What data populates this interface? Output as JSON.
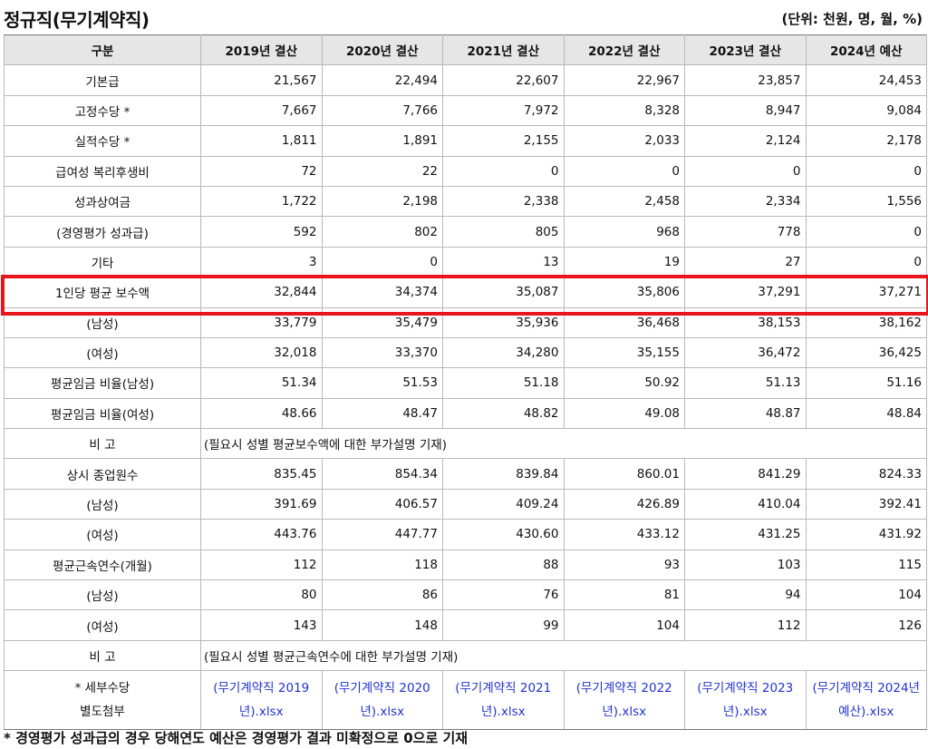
{
  "title": "정규직(무기계약직)",
  "unit": "(단위: 천원, 명, 월, %)",
  "table": {
    "headers": [
      "구분",
      "2019년 결산",
      "2020년 결산",
      "2021년 결산",
      "2022년 결산",
      "2023년 결산",
      "2024년 예산"
    ],
    "rows": [
      {
        "label": "기본급",
        "values": [
          "21,567",
          "22,494",
          "22,607",
          "22,967",
          "23,857",
          "24,453"
        ]
      },
      {
        "label": "고정수당 *",
        "values": [
          "7,667",
          "7,766",
          "7,972",
          "8,328",
          "8,947",
          "9,084"
        ]
      },
      {
        "label": "실적수당 *",
        "values": [
          "1,811",
          "1,891",
          "2,155",
          "2,033",
          "2,124",
          "2,178"
        ]
      },
      {
        "label": "급여성 복리후생비",
        "values": [
          "72",
          "22",
          "0",
          "0",
          "0",
          "0"
        ]
      },
      {
        "label": "성과상여금",
        "values": [
          "1,722",
          "2,198",
          "2,338",
          "2,458",
          "2,334",
          "1,556"
        ]
      },
      {
        "label": "(경영평가 성과급)",
        "values": [
          "592",
          "802",
          "805",
          "968",
          "778",
          "0"
        ]
      },
      {
        "label": "기타",
        "values": [
          "3",
          "0",
          "13",
          "19",
          "27",
          "0"
        ]
      },
      {
        "label": "1인당 평균 보수액",
        "values": [
          "32,844",
          "34,374",
          "35,087",
          "35,806",
          "37,291",
          "37,271"
        ]
      },
      {
        "label": "(남성)",
        "values": [
          "33,779",
          "35,479",
          "35,936",
          "36,468",
          "38,153",
          "38,162"
        ]
      },
      {
        "label": "(여성)",
        "values": [
          "32,018",
          "33,370",
          "34,280",
          "35,155",
          "36,472",
          "36,425"
        ]
      },
      {
        "label": "평균임금 비율(남성)",
        "values": [
          "51.34",
          "51.53",
          "51.18",
          "50.92",
          "51.13",
          "51.16"
        ]
      },
      {
        "label": "평균임금 비율(여성)",
        "values": [
          "48.66",
          "48.47",
          "48.82",
          "49.08",
          "48.87",
          "48.84"
        ]
      },
      {
        "label": "비 고",
        "note": "(필요시 성별 평균보수액에 대한 부가설명 기재)"
      },
      {
        "label": "상시 종업원수",
        "values": [
          "835.45",
          "854.34",
          "839.84",
          "860.01",
          "841.29",
          "824.33"
        ]
      },
      {
        "label": "(남성)",
        "values": [
          "391.69",
          "406.57",
          "409.24",
          "426.89",
          "410.04",
          "392.41"
        ]
      },
      {
        "label": "(여성)",
        "values": [
          "443.76",
          "447.77",
          "430.60",
          "433.12",
          "431.25",
          "431.92"
        ]
      },
      {
        "label": "평균근속연수(개월)",
        "values": [
          "112",
          "118",
          "88",
          "93",
          "103",
          "115"
        ]
      },
      {
        "label": "(남성)",
        "values": [
          "80",
          "86",
          "76",
          "81",
          "94",
          "104"
        ]
      },
      {
        "label": "(여성)",
        "values": [
          "143",
          "148",
          "99",
          "104",
          "112",
          "126"
        ]
      },
      {
        "label": "비 고",
        "note": "(필요시 성별 평균근속연수에 대한 부가설명 기재)"
      }
    ],
    "attachment": {
      "label_line1": "* 세부수당",
      "label_line2": "별도첨부",
      "links": [
        "(무기계약직 2019년).xlsx",
        "(무기계약직 2020년).xlsx",
        "(무기계약직 2021년).xlsx",
        "(무기계약직 2022년).xlsx",
        "(무기계약직 2023년).xlsx",
        "(무기계약직 2024년 예산).xlsx"
      ]
    }
  },
  "footnote": "* 경영평가 성과급의 경우 당해연도 예산은 경영평가 결과 미확정으로 0으로 기재",
  "colors": {
    "highlight": "#e8141e",
    "header_bg": "#e6e6e6",
    "link": "#2233cc"
  }
}
